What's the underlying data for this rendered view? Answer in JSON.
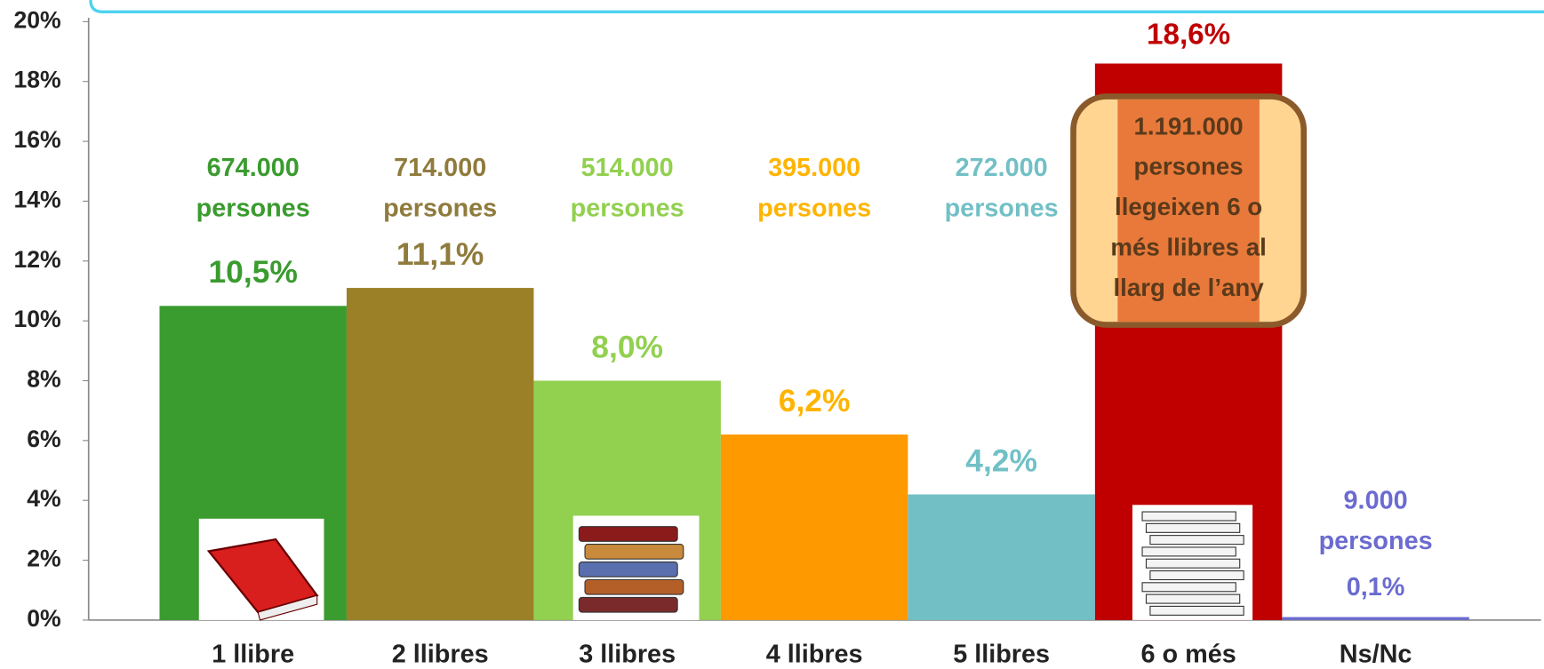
{
  "chart_data": {
    "type": "bar",
    "categories": [
      "1 llibre",
      "2 llibres",
      "3 llibres",
      "4 llibres",
      "5 llibres",
      "6 o més",
      "Ns/Nc"
    ],
    "values": [
      10.5,
      11.1,
      8.0,
      6.2,
      4.2,
      18.6,
      0.1
    ],
    "value_labels": [
      "10,5%",
      "11,1%",
      "8,0%",
      "6,2%",
      "4,2%",
      "18,6%",
      "0,1%"
    ],
    "colors": [
      "#3a9b2f",
      "#9b8028",
      "#92d050",
      "#ff9900",
      "#72c0c6",
      "#c00000",
      "#6b6bd0"
    ],
    "label_colors": [
      "#3a9b2f",
      "#8f7b3c",
      "#92d050",
      "#ffb400",
      "#72c0c6",
      "#c00000",
      "#6b6bd0"
    ],
    "annotations": [
      [
        "674.000",
        "persones"
      ],
      [
        "714.000",
        "persones"
      ],
      [
        "514.000",
        "persones"
      ],
      [
        "395.000",
        "persones"
      ],
      [
        "272.000",
        "persones"
      ],
      [
        "1.191.000",
        "persones",
        "llegeixen 6 o",
        "més llibres al",
        "llarg de l’any"
      ],
      [
        "9.000",
        "persones"
      ]
    ],
    "ylim": [
      0,
      20
    ],
    "yticks": [
      {
        "value": 0,
        "label": "0%"
      },
      {
        "value": 2,
        "label": "2%"
      },
      {
        "value": 4,
        "label": "4%"
      },
      {
        "value": 6,
        "label": "6%"
      },
      {
        "value": 8,
        "label": "8%"
      },
      {
        "value": 10,
        "label": "10%"
      },
      {
        "value": 12,
        "label": "12%"
      },
      {
        "value": 14,
        "label": "14%"
      },
      {
        "value": 16,
        "label": "16%"
      },
      {
        "value": 18,
        "label": "18%"
      },
      {
        "value": 20,
        "label": "20%"
      }
    ]
  }
}
